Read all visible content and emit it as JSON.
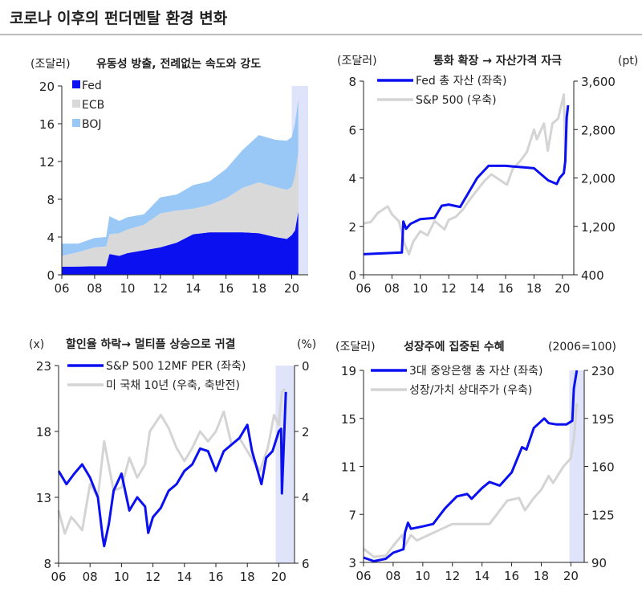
{
  "title": "코로나 이후의 펀더멘탈 환경 변화",
  "colors": {
    "fed": "#0a10f0",
    "ecb": "#d9d9d9",
    "boj": "#99c8f7",
    "blue_line": "#0a10f0",
    "gray_line": "#d4d4d4",
    "shade": "#dfe4fb"
  },
  "chart_data": [
    {
      "type": "area",
      "stacked": true,
      "title": "유동성 방출, 전례없는 속도와 강도",
      "unit_left": "(조달러)",
      "xticks": [
        "06",
        "08",
        "10",
        "12",
        "14",
        "16",
        "18",
        "20"
      ],
      "yticks": [
        "0",
        "4",
        "8",
        "12",
        "16",
        "20"
      ],
      "ylim": [
        0,
        20
      ],
      "xlim": [
        2006,
        2021
      ],
      "shade": [
        2020.0,
        2021.0
      ],
      "legend_position": "top-left",
      "x": [
        2006,
        2007,
        2008,
        2008.7,
        2008.9,
        2009.5,
        2010,
        2011,
        2012,
        2013,
        2014,
        2015,
        2016,
        2017,
        2018,
        2019,
        2019.7,
        2020,
        2020.2,
        2020.4
      ],
      "series": [
        {
          "name": "Fed",
          "color": "#0a10f0",
          "values": [
            0.85,
            0.87,
            0.9,
            0.9,
            2.2,
            2.0,
            2.3,
            2.6,
            2.9,
            3.4,
            4.3,
            4.5,
            4.5,
            4.5,
            4.4,
            4.0,
            3.8,
            4.2,
            4.7,
            6.7
          ]
        },
        {
          "name": "ECB",
          "color": "#d9d9d9",
          "values": [
            1.15,
            1.53,
            2.0,
            2.1,
            2.1,
            2.4,
            2.5,
            2.7,
            3.6,
            3.4,
            2.7,
            2.9,
            3.6,
            4.7,
            5.4,
            5.3,
            5.2,
            5.1,
            5.8,
            6.3
          ]
        },
        {
          "name": "BOJ",
          "color": "#99c8f7",
          "values": [
            1.3,
            0.9,
            1.0,
            1.0,
            1.9,
            1.3,
            1.3,
            1.1,
            1.7,
            1.7,
            2.5,
            2.5,
            3.1,
            4.0,
            5.0,
            5.0,
            5.2,
            5.3,
            5.5,
            5.6
          ]
        }
      ]
    },
    {
      "type": "line",
      "title": "통화 확장 → 자산가격 자극",
      "unit_left": "(조달러)",
      "unit_right": "(pt)",
      "xticks": [
        "06",
        "08",
        "10",
        "12",
        "14",
        "16",
        "18",
        "20"
      ],
      "yticks": [
        "0",
        "2",
        "4",
        "6",
        "8"
      ],
      "yticks_right": [
        "400",
        "1,200",
        "2,000",
        "2,800",
        "3,600"
      ],
      "ylim": [
        0,
        8
      ],
      "ylim_right": [
        400,
        3600
      ],
      "xlim": [
        2006,
        2020.8
      ],
      "legend_position": "top-left",
      "series": [
        {
          "name": "S&P 500 (우축)",
          "axis": "right",
          "color": "#d4d4d4",
          "x": [
            2006,
            2006.5,
            2007,
            2007.7,
            2008,
            2008.5,
            2008.9,
            2009.2,
            2009.5,
            2010,
            2010.5,
            2011,
            2011.7,
            2012,
            2012.5,
            2013,
            2013.5,
            2014,
            2014.5,
            2015,
            2015.7,
            2016.1,
            2016.5,
            2017,
            2017.5,
            2018,
            2018.2,
            2018.7,
            2018.97,
            2019.3,
            2019.7,
            2020.1,
            2020.2,
            2020.3,
            2020.4
          ],
          "y": [
            1250,
            1270,
            1420,
            1530,
            1400,
            1280,
            900,
            740,
            950,
            1120,
            1050,
            1290,
            1150,
            1310,
            1360,
            1480,
            1650,
            1800,
            1950,
            2060,
            1950,
            1890,
            2150,
            2270,
            2430,
            2800,
            2640,
            2900,
            2450,
            2900,
            2980,
            3380,
            2300,
            2900,
            3150
          ]
        },
        {
          "name": "Fed 총 자산 (좌축)",
          "axis": "left",
          "color": "#0a10f0",
          "x": [
            2006,
            2008.7,
            2008.8,
            2009,
            2009.3,
            2010,
            2011,
            2011.5,
            2012,
            2012.8,
            2013,
            2014,
            2014.8,
            2016,
            2017,
            2018,
            2019,
            2019.6,
            2019.8,
            2020.1,
            2020.2,
            2020.3,
            2020.4
          ],
          "y": [
            0.85,
            0.92,
            2.2,
            1.9,
            2.1,
            2.3,
            2.35,
            2.85,
            2.9,
            2.8,
            3.0,
            4.0,
            4.5,
            4.5,
            4.45,
            4.4,
            3.9,
            3.75,
            4.0,
            4.2,
            4.7,
            6.5,
            7.0
          ]
        }
      ]
    },
    {
      "type": "line",
      "title": "할인율 하락→ 멀티플 상승으로 귀결",
      "unit_left": "(x)",
      "unit_right": "(%)",
      "xticks": [
        "06",
        "08",
        "10",
        "12",
        "14",
        "16",
        "18",
        "20"
      ],
      "yticks": [
        "8",
        "13",
        "18",
        "23"
      ],
      "yticks_right": [
        "6",
        "4",
        "2",
        "0"
      ],
      "ylim": [
        8,
        23
      ],
      "ylim_right": [
        6,
        0
      ],
      "right_axis_inverted": true,
      "xlim": [
        2006,
        2021
      ],
      "shade": [
        2019.8,
        2021.0
      ],
      "legend_position": "top-left",
      "series": [
        {
          "name": "미 국채 10년 (우축, 축반전)",
          "axis": "right",
          "color": "#d4d4d4",
          "x": [
            2006,
            2006.4,
            2006.8,
            2007,
            2007.5,
            2008,
            2008.5,
            2008.9,
            2009.5,
            2010,
            2010.5,
            2011,
            2011.5,
            2011.8,
            2012.5,
            2013,
            2013.5,
            2014,
            2014.5,
            2015,
            2015.5,
            2016,
            2016.5,
            2017,
            2017.5,
            2018,
            2018.8,
            2019.3,
            2019.7,
            2020,
            2020.2,
            2020.4
          ],
          "y": [
            4.4,
            5.1,
            4.6,
            4.7,
            5.0,
            3.6,
            4.0,
            2.3,
            3.8,
            3.7,
            2.8,
            3.4,
            3.0,
            2.0,
            1.5,
            1.9,
            2.5,
            2.9,
            2.5,
            2.0,
            2.3,
            2.0,
            1.4,
            2.4,
            2.2,
            2.6,
            3.2,
            2.5,
            1.5,
            1.8,
            0.8,
            0.7
          ]
        },
        {
          "name": "S&P 500 12MF PER (좌축)",
          "axis": "left",
          "color": "#0a10f0",
          "x": [
            2006,
            2006.5,
            2007,
            2007.5,
            2008,
            2008.5,
            2008.8,
            2008.9,
            2009.2,
            2009.5,
            2010,
            2010.5,
            2011,
            2011.5,
            2011.7,
            2012,
            2012.5,
            2013,
            2013.5,
            2014,
            2014.5,
            2015,
            2015.5,
            2016,
            2016.5,
            2017,
            2017.5,
            2018,
            2018.3,
            2018.9,
            2019.2,
            2019.6,
            2020,
            2020.15,
            2020.2,
            2020.35,
            2020.45
          ],
          "y": [
            15,
            14,
            14.8,
            15.5,
            14.5,
            13,
            10,
            9.3,
            11,
            13.5,
            14.8,
            12,
            13,
            12.3,
            10.3,
            11.5,
            12.2,
            13.5,
            14,
            15,
            15.5,
            16.7,
            16.5,
            15,
            16.5,
            17,
            17.5,
            18.5,
            16.5,
            14,
            16,
            16.5,
            18,
            18.2,
            13.3,
            18,
            21
          ]
        }
      ]
    },
    {
      "type": "line",
      "title": "성장주에 집중된 수혜",
      "unit_left": "(조달러)",
      "unit_right": "(2006=100)",
      "xticks": [
        "06",
        "08",
        "10",
        "12",
        "14",
        "16",
        "18",
        "20"
      ],
      "yticks": [
        "3",
        "7",
        "11",
        "15",
        "19"
      ],
      "yticks_right": [
        "90",
        "125",
        "160",
        "195",
        "230"
      ],
      "ylim": [
        3,
        19
      ],
      "ylim_right": [
        90,
        230
      ],
      "xlim": [
        2006,
        2020.9
      ],
      "shade": [
        2019.9,
        2020.9
      ],
      "legend_position": "top-left",
      "series": [
        {
          "name": "성장/가치 상대주가 (우축)",
          "axis": "right",
          "color": "#d4d4d4",
          "x": [
            2006,
            2006.7,
            2007.5,
            2008,
            2008.6,
            2008.8,
            2009.2,
            2009.6,
            2010,
            2011,
            2012,
            2012.5,
            2013.5,
            2014.5,
            2015,
            2015.7,
            2016.5,
            2016.9,
            2017.5,
            2018,
            2018.5,
            2018.8,
            2019.5,
            2020,
            2020.2,
            2020.4
          ],
          "y": [
            100,
            94,
            95,
            102,
            110,
            102,
            110,
            106,
            108,
            113,
            118,
            118,
            118,
            118,
            125,
            135,
            137,
            128,
            137,
            143,
            153,
            148,
            160,
            166,
            180,
            206
          ]
        },
        {
          "name": "3대 중앙은행 총 자산 (좌축)",
          "axis": "left",
          "color": "#0a10f0",
          "x": [
            2006,
            2006.7,
            2007.5,
            2008,
            2008.7,
            2008.8,
            2009,
            2009.2,
            2010,
            2010.7,
            2011.5,
            2012.3,
            2013,
            2013.3,
            2014,
            2014.5,
            2015.2,
            2016,
            2016.7,
            2017,
            2017.5,
            2018.2,
            2018.5,
            2019,
            2019.7,
            2020.1,
            2020.2,
            2020.4
          ],
          "y": [
            3.4,
            3.1,
            3.3,
            3.8,
            4.1,
            5.5,
            6.3,
            5.8,
            6.0,
            6.2,
            7.5,
            8.5,
            8.7,
            8.3,
            9.2,
            9.7,
            9.4,
            10.5,
            12.6,
            12.4,
            14.2,
            15.0,
            14.6,
            14.5,
            14.5,
            14.8,
            17.5,
            19
          ]
        }
      ]
    }
  ]
}
